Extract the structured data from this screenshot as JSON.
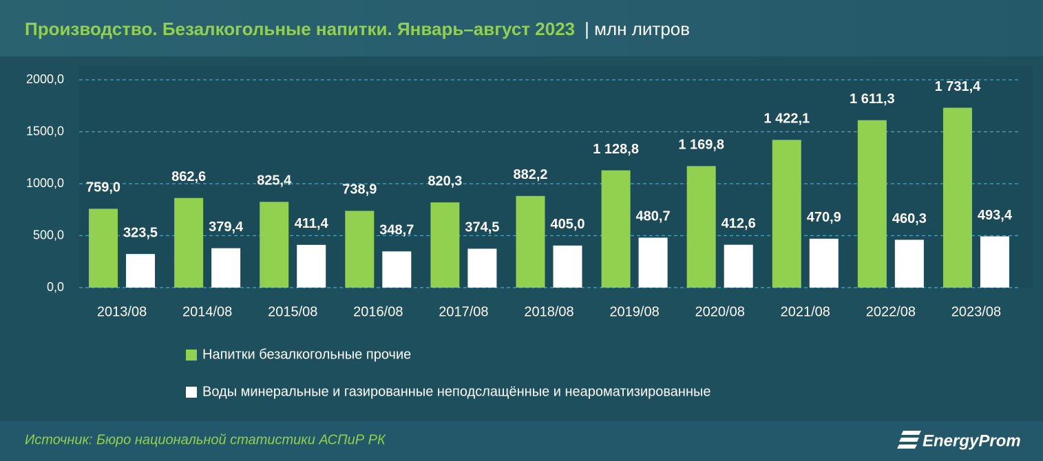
{
  "chart_data": {
    "type": "bar",
    "title": "Производство. Безалкогольные напитки. Январь–август 2023",
    "subtitle": "| млн литров",
    "categories": [
      "2013/08",
      "2014/08",
      "2015/08",
      "2016/08",
      "2017/08",
      "2018/08",
      "2019/08",
      "2020/08",
      "2021/08",
      "2022/08",
      "2023/08"
    ],
    "series": [
      {
        "name": "Напитки безалкогольные прочие",
        "color": "#92d050",
        "values": [
          759.0,
          862.6,
          825.4,
          738.9,
          820.3,
          882.2,
          1128.8,
          1169.8,
          1422.1,
          1611.3,
          1731.4
        ],
        "value_labels": [
          "759,0",
          "862,6",
          "825,4",
          "738,9",
          "820,3",
          "882,2",
          "1 128,8",
          "1 169,8",
          "1 422,1",
          "1 611,3",
          "1 731,4"
        ]
      },
      {
        "name": "Воды минеральные и газированные неподслащённые и неароматизированные",
        "color": "#ffffff",
        "values": [
          323.5,
          379.4,
          411.4,
          348.7,
          374.5,
          405.0,
          480.7,
          412.6,
          470.9,
          460.3,
          493.4
        ],
        "value_labels": [
          "323,5",
          "379,4",
          "411,4",
          "348,7",
          "374,5",
          "405,0",
          "480,7",
          "412,6",
          "470,9",
          "460,3",
          "493,4"
        ]
      }
    ],
    "ylim": [
      0,
      2000
    ],
    "yticks": [
      {
        "value": 0,
        "label": "0,0"
      },
      {
        "value": 500,
        "label": "500,0"
      },
      {
        "value": 1000,
        "label": "1000,0"
      },
      {
        "value": 1500,
        "label": "1500,0"
      },
      {
        "value": 2000,
        "label": "2000,0"
      }
    ],
    "grid": true,
    "source": "Источник: Бюро национальной статистики АСПиР РК",
    "logo": "EnergyProm"
  }
}
